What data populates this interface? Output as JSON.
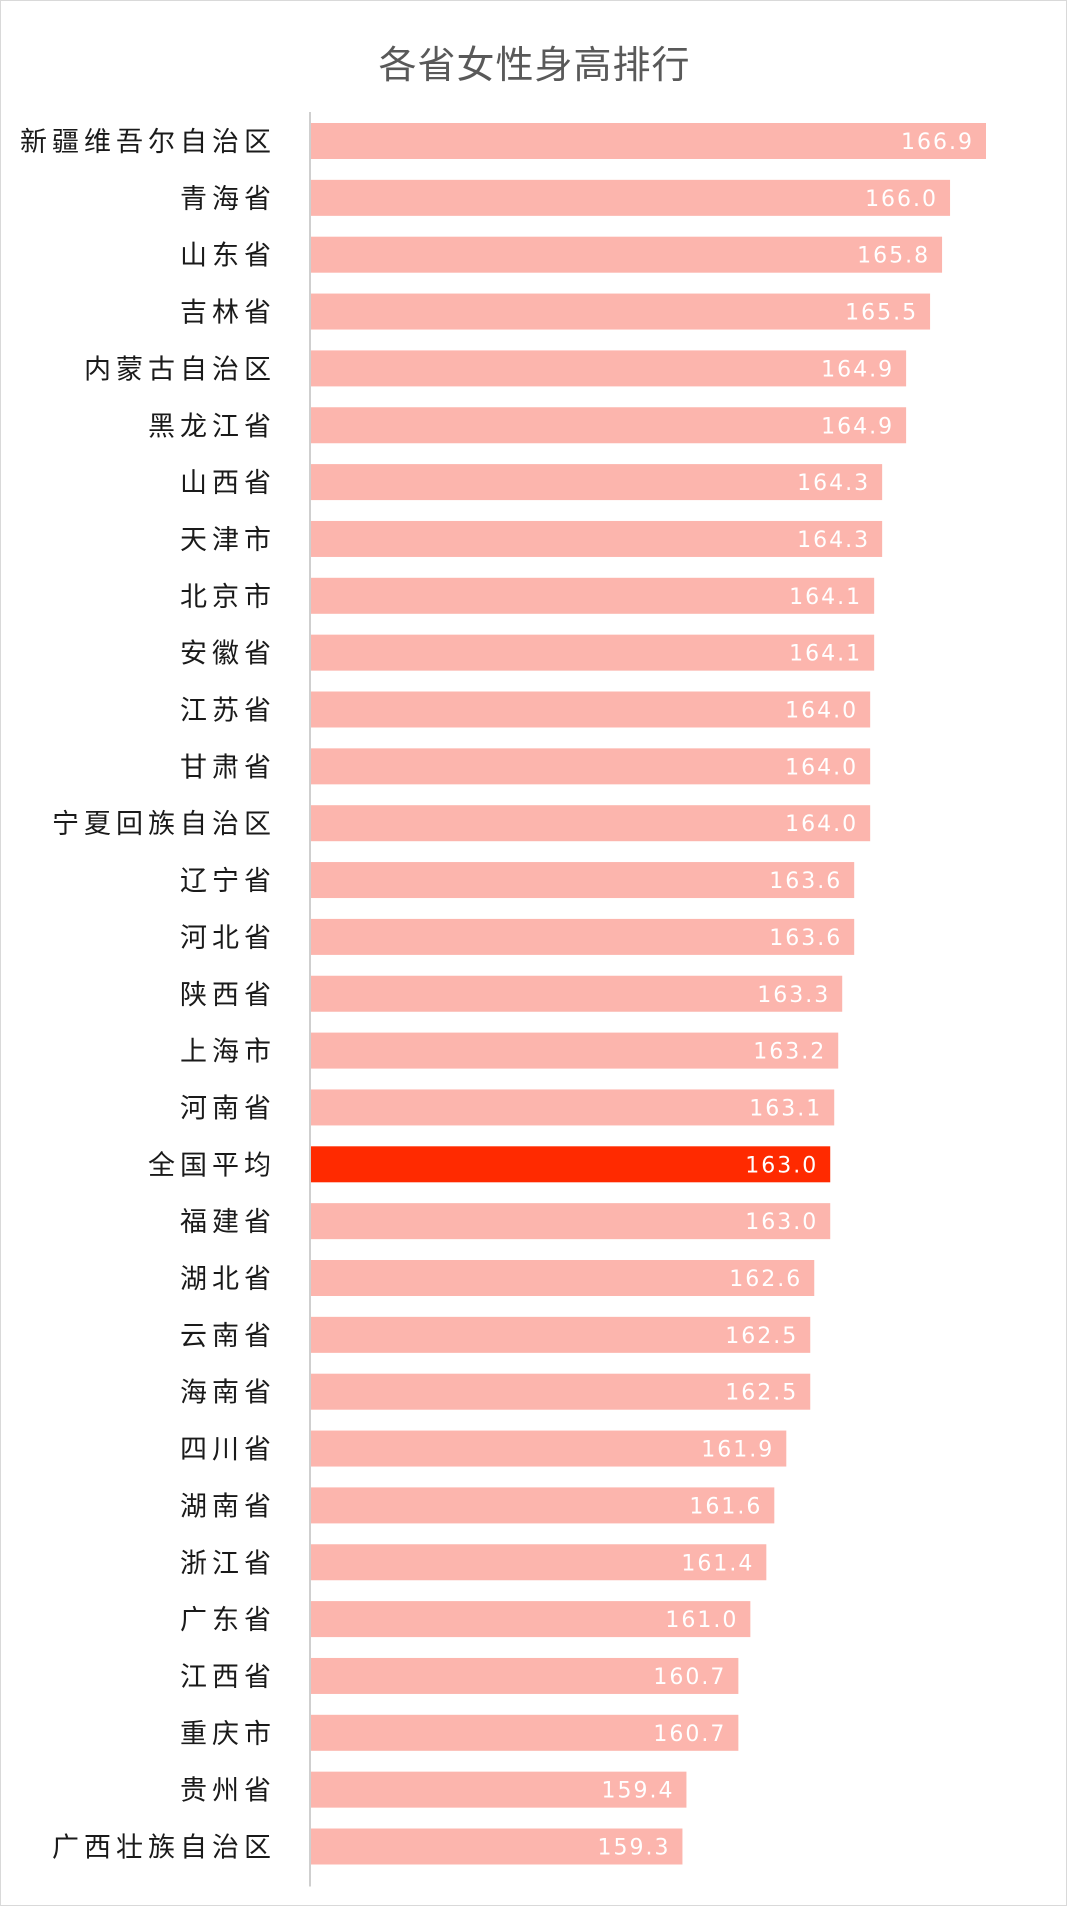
{
  "chart_data": {
    "type": "bar",
    "orientation": "horizontal",
    "title": "各省女性身高排行",
    "xlabel": "",
    "ylabel": "",
    "xlim": [
      150,
      168
    ],
    "grid": false,
    "legend": "none",
    "colors": {
      "bar": "#fcb5ad",
      "highlight": "#ff2a00",
      "value_label": "#ffffff",
      "axis": "#bfbfbf"
    },
    "highlight_category": "全国平均",
    "categories": [
      "新疆维吾尔自治区",
      "青海省",
      "山东省",
      "吉林省",
      "内蒙古自治区",
      "黑龙江省",
      "山西省",
      "天津市",
      "北京市",
      "安徽省",
      "江苏省",
      "甘肃省",
      "宁夏回族自治区",
      "辽宁省",
      "河北省",
      "陕西省",
      "上海市",
      "河南省",
      "全国平均",
      "福建省",
      "湖北省",
      "云南省",
      "海南省",
      "四川省",
      "湖南省",
      "浙江省",
      "广东省",
      "江西省",
      "重庆市",
      "贵州省",
      "广西壮族自治区"
    ],
    "values": [
      166.9,
      166.0,
      165.8,
      165.5,
      164.9,
      164.9,
      164.3,
      164.3,
      164.1,
      164.1,
      164.0,
      164.0,
      164.0,
      163.6,
      163.6,
      163.3,
      163.2,
      163.1,
      163.0,
      163.0,
      162.6,
      162.5,
      162.5,
      161.9,
      161.6,
      161.4,
      161.0,
      160.7,
      160.7,
      159.4,
      159.3
    ],
    "value_labels": [
      "166.9",
      "166.0",
      "165.8",
      "165.5",
      "164.9",
      "164.9",
      "164.3",
      "164.3",
      "164.1",
      "164.1",
      "164.0",
      "164.0",
      "164.0",
      "163.6",
      "163.6",
      "163.3",
      "163.2",
      "163.1",
      "163.0",
      "163.0",
      "162.6",
      "162.5",
      "162.5",
      "161.9",
      "161.6",
      "161.4",
      "161.0",
      "160.7",
      "160.7",
      "159.4",
      "159.3"
    ]
  }
}
